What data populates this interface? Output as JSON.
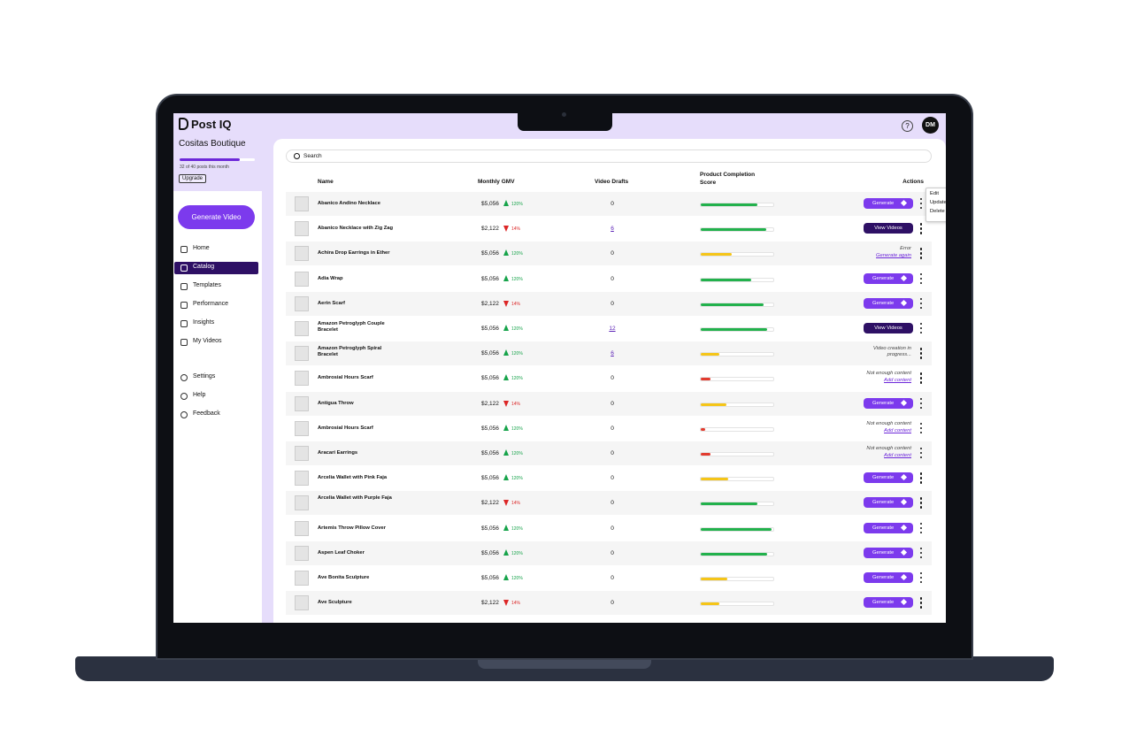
{
  "app": {
    "logo": "Post IQ",
    "help": "?",
    "avatar": "DM"
  },
  "sidebar": {
    "store": "Cositas Boutique",
    "usage": "32 of 40 posts this month",
    "upgrade": "Upgrade",
    "generate": "Generate Video",
    "nav": [
      "Home",
      "Catalog",
      "Templates",
      "Performance",
      "Insights",
      "My Videos"
    ],
    "active": 1,
    "nav_bottom": [
      "Settings",
      "Help",
      "Feedback"
    ]
  },
  "table": {
    "search": "Search",
    "columns": {
      "name": "Name",
      "gmv": "Monthly GMV",
      "drafts": "Video Drafts",
      "score": "Product Completion Score",
      "actions": "Actions"
    },
    "rows": [
      {
        "name": "Abanico Andino Necklace",
        "gmv": "$5,056",
        "trend": "up",
        "change": "120%",
        "drafts": "0",
        "score": 78,
        "action": {
          "kind": "generate",
          "label": "Generate"
        }
      },
      {
        "name": "Abanico Necklace with Zig Zag",
        "gmv": "$2,122",
        "trend": "down",
        "change": "14%",
        "drafts": "6",
        "score": 90,
        "action": {
          "kind": "view",
          "label": "View Videos"
        }
      },
      {
        "name": "Achira Drop Earrings in Ether",
        "gmv": "$5,056",
        "trend": "up",
        "change": "120%",
        "drafts": "0",
        "score": 43,
        "action": {
          "kind": "status",
          "label": "Error",
          "link": "Generate again"
        }
      },
      {
        "name": "Adia Wrap",
        "gmv": "$5,056",
        "trend": "up",
        "change": "120%",
        "drafts": "0",
        "score": 70,
        "action": {
          "kind": "generate",
          "label": "Generate"
        }
      },
      {
        "name": "Aerin Scarf",
        "gmv": "$2,122",
        "trend": "down",
        "change": "14%",
        "drafts": "0",
        "score": 86,
        "action": {
          "kind": "generate",
          "label": "Generate"
        }
      },
      {
        "name": "Amazon Petroglyph Couple Bracelet",
        "gmv": "$5,056",
        "trend": "up",
        "change": "120%",
        "drafts": "12",
        "score": 92,
        "action": {
          "kind": "view",
          "label": "View Videos"
        }
      },
      {
        "name": "Amazon Petroglyph Spiral Bracelet",
        "gmv": "$5,056",
        "trend": "up",
        "change": "120%",
        "drafts": "6",
        "score": 25,
        "action": {
          "kind": "status",
          "label": "Video creation in progress..."
        }
      },
      {
        "name": "Ambrosial Hours Scarf",
        "gmv": "$5,056",
        "trend": "up",
        "change": "120%",
        "drafts": "0",
        "score": 13,
        "action": {
          "kind": "status",
          "label": "Not enough content",
          "link": "Add content"
        }
      },
      {
        "name": "Antigua Throw",
        "gmv": "$2,122",
        "trend": "down",
        "change": "14%",
        "drafts": "0",
        "score": 35,
        "action": {
          "kind": "generate",
          "label": "Generate"
        }
      },
      {
        "name": "Ambrosial Hours Scarf",
        "gmv": "$5,056",
        "trend": "up",
        "change": "120%",
        "drafts": "0",
        "score": 6,
        "action": {
          "kind": "status",
          "label": "Not enough content",
          "link": "Add content"
        }
      },
      {
        "name": "Aracari Earrings",
        "gmv": "$5,056",
        "trend": "up",
        "change": "120%",
        "drafts": "0",
        "score": 13,
        "action": {
          "kind": "status",
          "label": "Not enough content",
          "link": "Add content"
        }
      },
      {
        "name": "Arcelia Wallet with Pink Faja",
        "gmv": "$5,056",
        "trend": "up",
        "change": "120%",
        "drafts": "0",
        "score": 38,
        "action": {
          "kind": "generate",
          "label": "Generate"
        }
      },
      {
        "name": "Arcelia Wallet with Purple Faja",
        "gmv": "$2,122",
        "trend": "down",
        "change": "14%",
        "drafts": "0",
        "score": 78,
        "action": {
          "kind": "generate",
          "label": "Generate"
        }
      },
      {
        "name": "Artemis Throw Pillow Cover",
        "gmv": "$5,056",
        "trend": "up",
        "change": "120%",
        "drafts": "0",
        "score": 97,
        "action": {
          "kind": "generate",
          "label": "Generate"
        }
      },
      {
        "name": "Aspen Leaf Choker",
        "gmv": "$5,056",
        "trend": "up",
        "change": "120%",
        "drafts": "0",
        "score": 92,
        "action": {
          "kind": "generate",
          "label": "Generate"
        }
      },
      {
        "name": "Ave Bonita Sculpture",
        "gmv": "$5,056",
        "trend": "up",
        "change": "120%",
        "drafts": "0",
        "score": 37,
        "action": {
          "kind": "generate",
          "label": "Generate"
        }
      },
      {
        "name": "Ave Sculpture",
        "gmv": "$2,122",
        "trend": "down",
        "change": "14%",
        "drafts": "0",
        "score": 25,
        "action": {
          "kind": "generate",
          "label": "Generate"
        }
      }
    ]
  },
  "menu": [
    "Edit",
    "Update",
    "Delete"
  ]
}
